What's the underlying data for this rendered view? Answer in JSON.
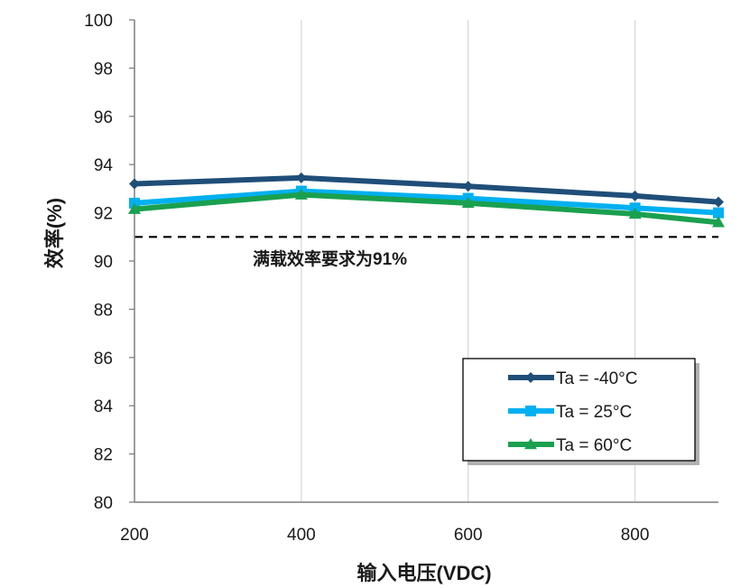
{
  "chart_data": {
    "type": "line",
    "xlabel": "输入电压(VDC)",
    "ylabel": "效率(%)",
    "xlim": [
      200,
      900
    ],
    "ylim": [
      80,
      100
    ],
    "x_ticks": [
      200,
      400,
      600,
      800
    ],
    "y_ticks": [
      80,
      82,
      84,
      86,
      88,
      90,
      92,
      94,
      96,
      98,
      100
    ],
    "x": [
      200,
      400,
      600,
      800,
      900
    ],
    "series": [
      {
        "name": "Ta = -40°C",
        "color": "#1f4e79",
        "marker": "diamond",
        "values": [
          93.2,
          93.45,
          93.1,
          92.7,
          92.45
        ]
      },
      {
        "name": "Ta = 25°C",
        "color": "#00b0f0",
        "marker": "square",
        "values": [
          92.4,
          92.9,
          92.6,
          92.2,
          92.0
        ]
      },
      {
        "name": "Ta = 60°C",
        "color": "#1aa04f",
        "marker": "triangle",
        "values": [
          92.15,
          92.75,
          92.4,
          91.95,
          91.6
        ]
      }
    ],
    "reference_line": {
      "value": 91,
      "style": "dashed",
      "label": "满载效率要求为91%"
    },
    "grid": "vertical",
    "legend_position": "bottom-right"
  }
}
